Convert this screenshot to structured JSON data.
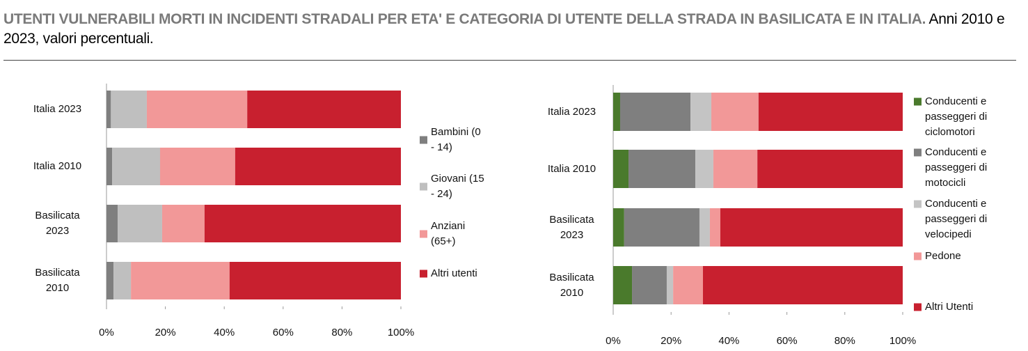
{
  "header": {
    "title": "UTENTI VULNERABILI MORTI IN INCIDENTI STRADALI PER ETA' E CATEGORIA DI UTENTE DELLA STRADA IN BASILICATA E IN ITALIA.",
    "subtitle": "Anni 2010 e 2023, valori percentuali."
  },
  "chart_data": [
    {
      "type": "bar",
      "orientation": "horizontal",
      "stacked": true,
      "legend": "right",
      "categories": [
        "Italia 2023",
        "Italia 2010",
        "Basilicata 2023",
        "Basilicata 2010"
      ],
      "series": [
        {
          "name": "Bambini (0 - 14)",
          "color": "#7f7f7f",
          "values": [
            1.5,
            1.9,
            3.8,
            2.4
          ]
        },
        {
          "name": "Giovani (15 - 24)",
          "color": "#bfbfbf",
          "values": [
            12.2,
            16.3,
            15.1,
            5.9
          ]
        },
        {
          "name": "Anziani (65+)",
          "color": "#f29898",
          "values": [
            34.1,
            25.5,
            14.4,
            33.5
          ]
        },
        {
          "name": "Altri utenti",
          "color": "#c8202f",
          "values": [
            52.2,
            56.3,
            66.7,
            58.2
          ]
        }
      ],
      "xlim": [
        0,
        100
      ],
      "xticks": [
        {
          "value": 0,
          "label": "0%"
        },
        {
          "value": 20,
          "label": "20%"
        },
        {
          "value": 40,
          "label": "40%"
        },
        {
          "value": 60,
          "label": "60%"
        },
        {
          "value": 80,
          "label": "80%"
        },
        {
          "value": 100,
          "label": "100%"
        }
      ]
    },
    {
      "type": "bar",
      "orientation": "horizontal",
      "stacked": true,
      "legend": "right",
      "categories": [
        "Italia 2023",
        "Italia 2010",
        "Basilicata 2023",
        "Basilicata 2010"
      ],
      "series": [
        {
          "name": "Conducenti e passeggeri di ciclomotori",
          "color": "#4a7a2c",
          "values": [
            2.4,
            5.3,
            3.8,
            6.5
          ]
        },
        {
          "name": "Conducenti e passeggeri di motocicli",
          "color": "#7f7f7f",
          "values": [
            24.3,
            23.1,
            26.0,
            12.0
          ]
        },
        {
          "name": "Conducenti e passeggeri di velocipedi",
          "color": "#c4c4c4",
          "values": [
            7.2,
            6.2,
            3.6,
            2.2
          ]
        },
        {
          "name": "Pedone",
          "color": "#f29898",
          "values": [
            16.3,
            15.2,
            3.6,
            10.3
          ]
        },
        {
          "name": "Altri Utenti",
          "color": "#c8202f",
          "values": [
            49.8,
            50.2,
            63.0,
            69.0
          ]
        }
      ],
      "xlim": [
        0,
        100
      ],
      "xticks": [
        {
          "value": 0,
          "label": "0%"
        },
        {
          "value": 20,
          "label": "20%"
        },
        {
          "value": 40,
          "label": "40%"
        },
        {
          "value": 60,
          "label": "60%"
        },
        {
          "value": 80,
          "label": "80%"
        },
        {
          "value": 100,
          "label": "100%"
        }
      ]
    }
  ]
}
